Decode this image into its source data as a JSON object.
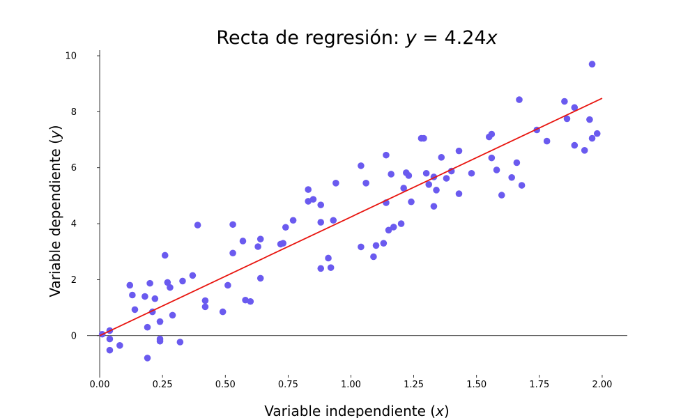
{
  "chart_data": {
    "type": "scatter",
    "title": {
      "prefix": "Recta de regresión: ",
      "y": "y",
      "eq": " = 4.24",
      "x": "x"
    },
    "xlabel": {
      "text": "Variable independiente (",
      "var": "x",
      "close": ")"
    },
    "ylabel": {
      "text": "Variable dependiente (",
      "var": "y",
      "close": ")"
    },
    "xlim": [
      -0.05,
      2.1
    ],
    "ylim": [
      -1.4,
      10.2
    ],
    "xticks": [
      0.0,
      0.25,
      0.5,
      0.75,
      1.0,
      1.25,
      1.5,
      1.75,
      2.0
    ],
    "xtick_labels": [
      "0.00",
      "0.25",
      "0.50",
      "0.75",
      "1.00",
      "1.25",
      "1.50",
      "1.75",
      "2.00"
    ],
    "yticks": [
      0,
      2,
      4,
      6,
      8,
      10
    ],
    "ytick_labels": [
      "0",
      "2",
      "4",
      "6",
      "8",
      "10"
    ],
    "grid": false,
    "point_color": "#6a5aef",
    "line_color": "#e8150f",
    "regression": {
      "slope": 4.24,
      "x0": 0.0,
      "x1": 2.0
    },
    "points": [
      [
        0.01,
        0.05
      ],
      [
        0.04,
        0.18
      ],
      [
        0.04,
        -0.12
      ],
      [
        0.04,
        -0.52
      ],
      [
        0.08,
        -0.35
      ],
      [
        0.12,
        1.8
      ],
      [
        0.13,
        1.45
      ],
      [
        0.14,
        0.93
      ],
      [
        0.18,
        1.4
      ],
      [
        0.19,
        -0.8
      ],
      [
        0.19,
        0.3
      ],
      [
        0.2,
        1.87
      ],
      [
        0.21,
        0.85
      ],
      [
        0.22,
        1.32
      ],
      [
        0.24,
        0.5
      ],
      [
        0.24,
        -0.2
      ],
      [
        0.24,
        -0.12
      ],
      [
        0.26,
        2.87
      ],
      [
        0.27,
        1.9
      ],
      [
        0.28,
        1.72
      ],
      [
        0.29,
        0.73
      ],
      [
        0.32,
        -0.23
      ],
      [
        0.33,
        1.95
      ],
      [
        0.37,
        2.15
      ],
      [
        0.39,
        3.95
      ],
      [
        0.42,
        1.03
      ],
      [
        0.42,
        1.25
      ],
      [
        0.49,
        0.85
      ],
      [
        0.51,
        1.8
      ],
      [
        0.53,
        3.97
      ],
      [
        0.53,
        2.95
      ],
      [
        0.57,
        3.38
      ],
      [
        0.58,
        1.27
      ],
      [
        0.6,
        1.22
      ],
      [
        0.63,
        3.18
      ],
      [
        0.64,
        3.45
      ],
      [
        0.64,
        2.05
      ],
      [
        0.72,
        3.27
      ],
      [
        0.73,
        3.3
      ],
      [
        0.74,
        3.87
      ],
      [
        0.77,
        4.12
      ],
      [
        0.83,
        4.8
      ],
      [
        0.83,
        5.22
      ],
      [
        0.85,
        4.87
      ],
      [
        0.88,
        4.67
      ],
      [
        0.88,
        4.05
      ],
      [
        0.88,
        2.4
      ],
      [
        0.91,
        2.77
      ],
      [
        0.92,
        2.43
      ],
      [
        0.93,
        4.12
      ],
      [
        0.94,
        5.45
      ],
      [
        1.04,
        6.07
      ],
      [
        1.04,
        3.17
      ],
      [
        1.06,
        5.45
      ],
      [
        1.09,
        2.82
      ],
      [
        1.1,
        3.22
      ],
      [
        1.13,
        3.3
      ],
      [
        1.14,
        6.45
      ],
      [
        1.14,
        4.75
      ],
      [
        1.15,
        3.77
      ],
      [
        1.16,
        5.77
      ],
      [
        1.17,
        3.88
      ],
      [
        1.2,
        4.0
      ],
      [
        1.21,
        5.27
      ],
      [
        1.22,
        5.82
      ],
      [
        1.23,
        5.72
      ],
      [
        1.24,
        4.78
      ],
      [
        1.28,
        7.05
      ],
      [
        1.29,
        7.05
      ],
      [
        1.3,
        5.8
      ],
      [
        1.31,
        5.4
      ],
      [
        1.33,
        5.67
      ],
      [
        1.33,
        4.62
      ],
      [
        1.34,
        5.2
      ],
      [
        1.36,
        6.37
      ],
      [
        1.38,
        5.62
      ],
      [
        1.4,
        5.88
      ],
      [
        1.43,
        6.6
      ],
      [
        1.43,
        5.07
      ],
      [
        1.48,
        5.8
      ],
      [
        1.55,
        7.1
      ],
      [
        1.56,
        7.2
      ],
      [
        1.56,
        6.35
      ],
      [
        1.58,
        5.92
      ],
      [
        1.6,
        5.02
      ],
      [
        1.64,
        5.65
      ],
      [
        1.66,
        6.18
      ],
      [
        1.67,
        8.43
      ],
      [
        1.68,
        5.37
      ],
      [
        1.74,
        7.35
      ],
      [
        1.78,
        6.95
      ],
      [
        1.85,
        8.37
      ],
      [
        1.86,
        7.75
      ],
      [
        1.89,
        8.15
      ],
      [
        1.89,
        6.8
      ],
      [
        1.93,
        6.62
      ],
      [
        1.95,
        7.72
      ],
      [
        1.96,
        7.05
      ],
      [
        1.96,
        9.7
      ],
      [
        1.98,
        7.22
      ]
    ]
  }
}
